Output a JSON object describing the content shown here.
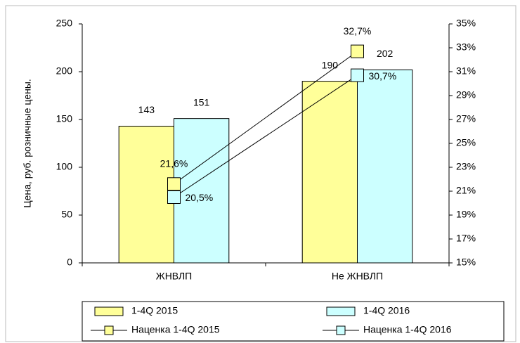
{
  "chart_data": {
    "type": "bar",
    "categories": [
      "ЖНВЛП",
      "Не ЖНВЛП"
    ],
    "y_label": "Цена, руб. розничные цены.",
    "ylim": [
      0,
      250
    ],
    "yticks": [
      0,
      50,
      100,
      150,
      200,
      250
    ],
    "y2lim": [
      15,
      35
    ],
    "y2ticks": [
      {
        "value": 15,
        "label": "15%"
      },
      {
        "value": 17,
        "label": "17%"
      },
      {
        "value": 19,
        "label": "19%"
      },
      {
        "value": 21,
        "label": "21%"
      },
      {
        "value": 23,
        "label": "23%"
      },
      {
        "value": 25,
        "label": "25%"
      },
      {
        "value": 27,
        "label": "27%"
      },
      {
        "value": 29,
        "label": "29%"
      },
      {
        "value": 31,
        "label": "31%"
      },
      {
        "value": 33,
        "label": "33%"
      },
      {
        "value": 35,
        "label": "35%"
      }
    ],
    "legend": "bottom",
    "series": [
      {
        "name": "1-4Q 2015",
        "type": "bar",
        "color": "#ffff99",
        "values": [
          143,
          190
        ]
      },
      {
        "name": "1-4Q 2016",
        "type": "bar",
        "color": "#ccffff",
        "values": [
          151,
          202
        ]
      },
      {
        "name": "Наценка 1-4Q 2015",
        "type": "line",
        "axis": "y2",
        "color": "#ffff99",
        "values": [
          21.6,
          32.7
        ],
        "value_labels": [
          "21,6%",
          "32,7%"
        ]
      },
      {
        "name": "Наценка 1-4Q 2016",
        "type": "line",
        "axis": "y2",
        "color": "#ccffff",
        "values": [
          20.5,
          30.7
        ],
        "value_labels": [
          "20,5%",
          "30,7%"
        ]
      }
    ]
  }
}
